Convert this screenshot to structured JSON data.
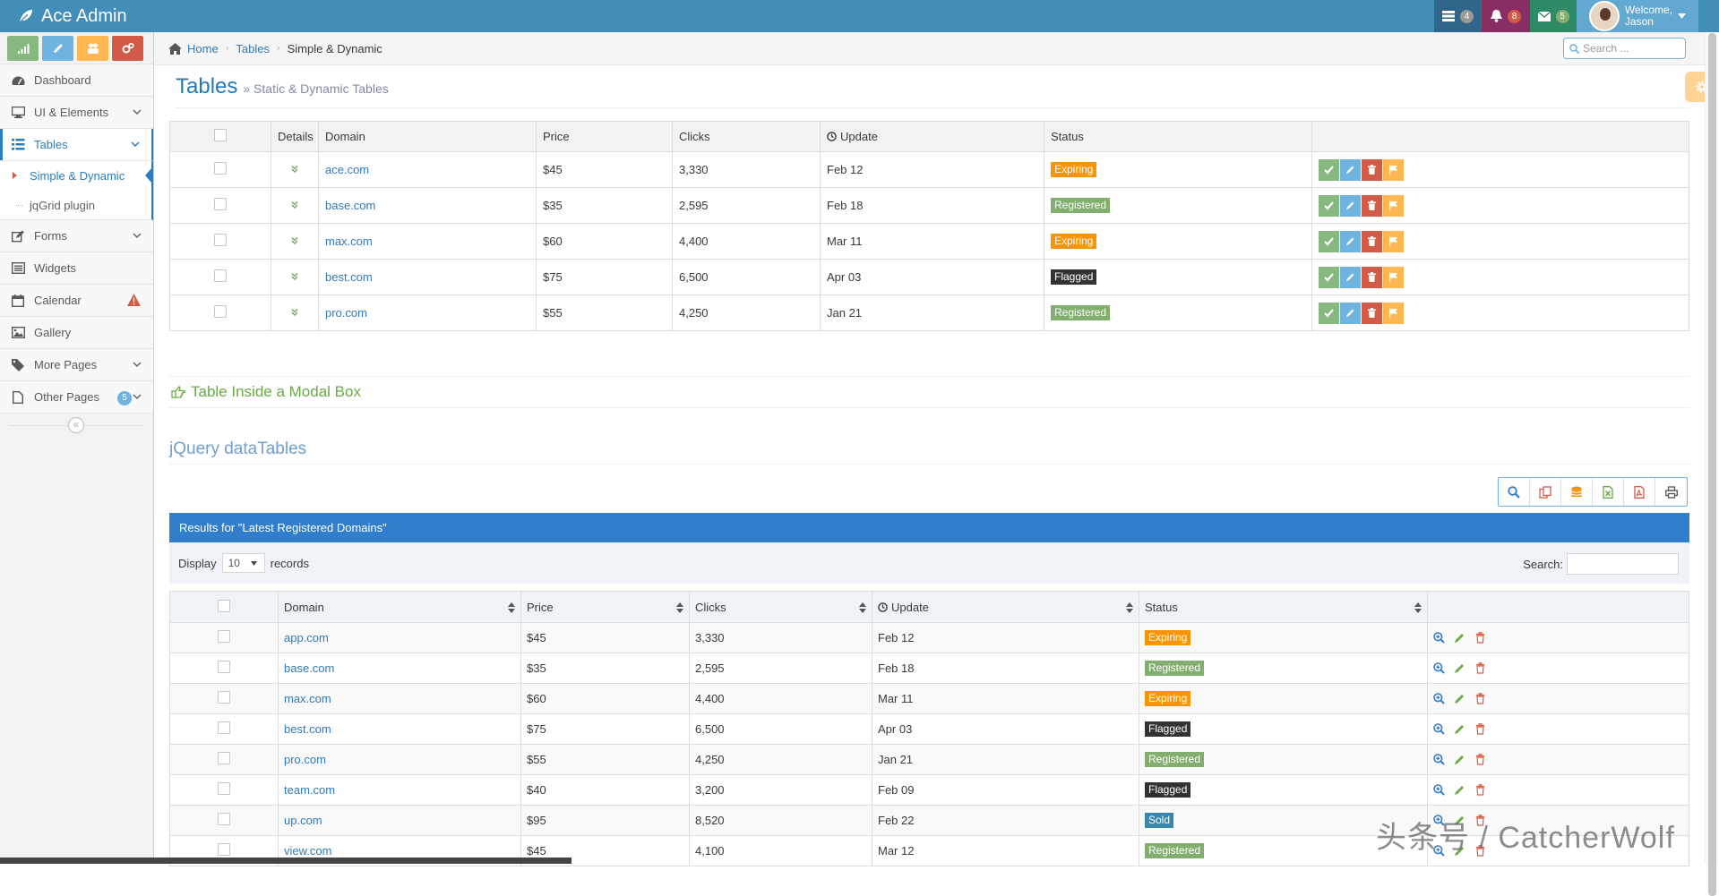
{
  "brand": {
    "name": "Ace Admin"
  },
  "navbar": {
    "tasks_count": "4",
    "notifications_count": "8",
    "messages_count": "5",
    "welcome": "Welcome,",
    "user": "Jason"
  },
  "sidebar": {
    "items": [
      {
        "label": "Dashboard"
      },
      {
        "label": "UI & Elements"
      },
      {
        "label": "Tables"
      },
      {
        "label": "Forms"
      },
      {
        "label": "Widgets"
      },
      {
        "label": "Calendar"
      },
      {
        "label": "Gallery"
      },
      {
        "label": "More Pages"
      },
      {
        "label": "Other Pages",
        "badge": "5"
      }
    ],
    "subitems": [
      {
        "label": "Simple & Dynamic"
      },
      {
        "label": "jqGrid plugin"
      }
    ]
  },
  "breadcrumb": {
    "home": "Home",
    "section": "Tables",
    "current": "Simple & Dynamic"
  },
  "search": {
    "placeholder": "Search ..."
  },
  "page": {
    "title": "Tables",
    "subtitle": "» Static & Dynamic Tables"
  },
  "table1": {
    "headers": {
      "details": "Details",
      "domain": "Domain",
      "price": "Price",
      "clicks": "Clicks",
      "update": "Update",
      "status": "Status"
    },
    "rows": [
      {
        "domain": "ace.com",
        "price": "$45",
        "clicks": "3,330",
        "update": "Feb 12",
        "status": "Expiring"
      },
      {
        "domain": "base.com",
        "price": "$35",
        "clicks": "2,595",
        "update": "Feb 18",
        "status": "Registered"
      },
      {
        "domain": "max.com",
        "price": "$60",
        "clicks": "4,400",
        "update": "Mar 11",
        "status": "Expiring"
      },
      {
        "domain": "best.com",
        "price": "$75",
        "clicks": "6,500",
        "update": "Apr 03",
        "status": "Flagged"
      },
      {
        "domain": "pro.com",
        "price": "$55",
        "clicks": "4,250",
        "update": "Jan 21",
        "status": "Registered"
      }
    ]
  },
  "modal_link": "Table Inside a Modal Box",
  "datatables": {
    "title": "jQuery dataTables",
    "header": "Results for \"Latest Registered Domains\"",
    "display_label": "Display",
    "display_value": "10",
    "records_label": "records",
    "search_label": "Search:",
    "headers": {
      "domain": "Domain",
      "price": "Price",
      "clicks": "Clicks",
      "update": "Update",
      "status": "Status"
    },
    "rows": [
      {
        "domain": "app.com",
        "price": "$45",
        "clicks": "3,330",
        "update": "Feb 12",
        "status": "Expiring"
      },
      {
        "domain": "base.com",
        "price": "$35",
        "clicks": "2,595",
        "update": "Feb 18",
        "status": "Registered"
      },
      {
        "domain": "max.com",
        "price": "$60",
        "clicks": "4,400",
        "update": "Mar 11",
        "status": "Expiring"
      },
      {
        "domain": "best.com",
        "price": "$75",
        "clicks": "6,500",
        "update": "Apr 03",
        "status": "Flagged"
      },
      {
        "domain": "pro.com",
        "price": "$55",
        "clicks": "4,250",
        "update": "Jan 21",
        "status": "Registered"
      },
      {
        "domain": "team.com",
        "price": "$40",
        "clicks": "3,200",
        "update": "Feb 09",
        "status": "Flagged"
      },
      {
        "domain": "up.com",
        "price": "$95",
        "clicks": "8,520",
        "update": "Feb 22",
        "status": "Sold"
      },
      {
        "domain": "view.com",
        "price": "$45",
        "clicks": "4,100",
        "update": "Mar 12",
        "status": "Registered"
      }
    ]
  },
  "watermark": "头条号 / CatcherWolf",
  "colors": {
    "navbar": "#438eb9",
    "accent": "#2b7dbc",
    "success": "#82af6f",
    "warning": "#f89406",
    "danger": "#d15b47",
    "inverse": "#333333",
    "info": "#3a87ad",
    "datatable_header": "#307ecc"
  }
}
